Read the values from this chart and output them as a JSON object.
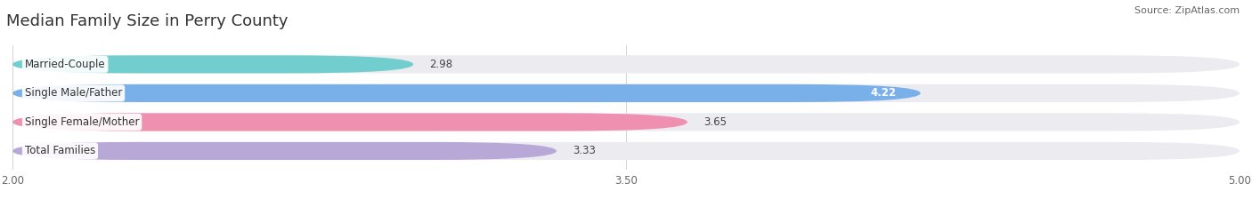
{
  "title": "Median Family Size in Perry County",
  "source": "Source: ZipAtlas.com",
  "categories": [
    "Married-Couple",
    "Single Male/Father",
    "Single Female/Mother",
    "Total Families"
  ],
  "values": [
    2.98,
    4.22,
    3.65,
    3.33
  ],
  "bar_colors": [
    "#72cece",
    "#7ab0ea",
    "#f090b0",
    "#b8a8d8"
  ],
  "bar_bg_color": "#ebebf0",
  "value_inside": [
    false,
    true,
    false,
    false
  ],
  "xlim": [
    2.0,
    5.0
  ],
  "xticks": [
    2.0,
    3.5,
    5.0
  ],
  "xtick_labels": [
    "2.00",
    "3.50",
    "5.00"
  ],
  "bar_height": 0.62,
  "background_color": "#ffffff",
  "label_fontsize": 8.5,
  "value_fontsize": 8.5,
  "title_fontsize": 13,
  "source_fontsize": 8
}
